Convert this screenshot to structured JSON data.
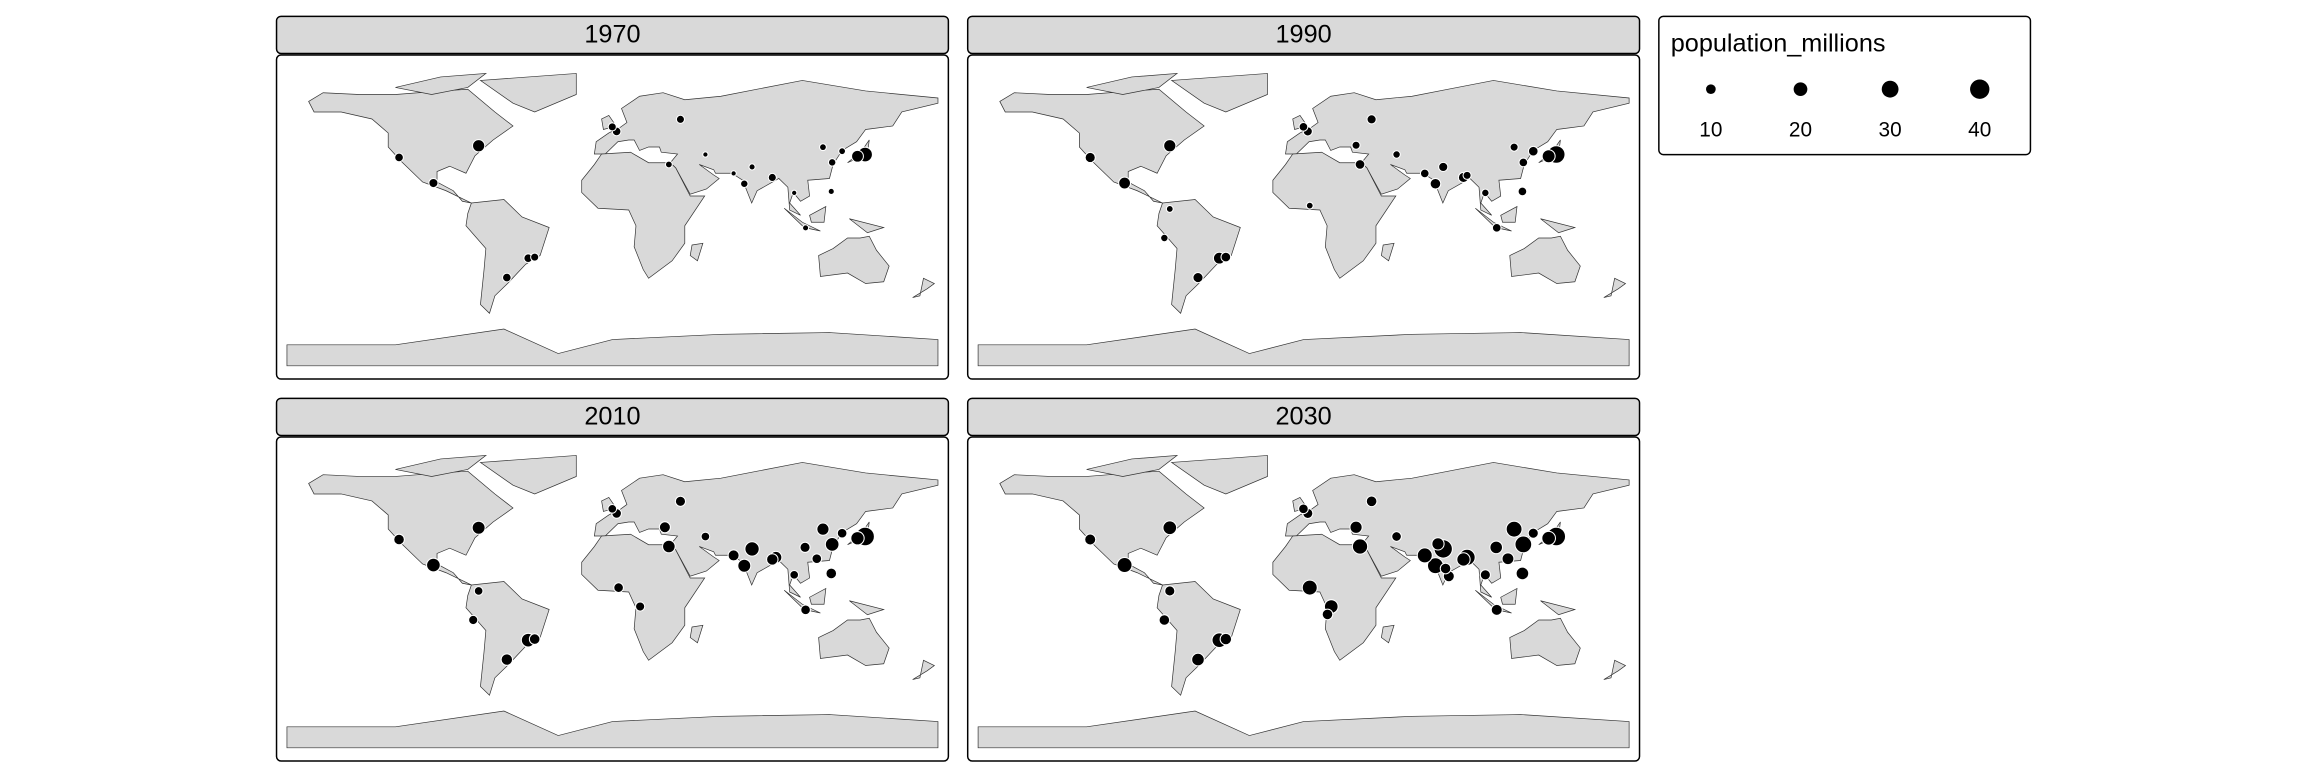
{
  "panels": [
    {
      "title": "1970",
      "lon": [
        139.7,
        135.5,
        -74,
        -99,
        -118,
        -46.6,
        -43,
        -58.4,
        2.3,
        -0.1,
        37.6,
        88.4,
        72.9,
        121.5,
        116.4,
        31.2,
        127,
        106.8,
        77.2,
        67,
        121,
        100.5,
        51.4
      ],
      "lat": [
        35.7,
        34.7,
        40.7,
        19.4,
        34,
        -23.5,
        -22.9,
        -34.6,
        48.9,
        51.5,
        55.8,
        22.6,
        19,
        31.2,
        39.9,
        30,
        37.6,
        -6.2,
        28.6,
        24.9,
        14.6,
        13.8,
        35.7
      ],
      "values": [
        23,
        15,
        16,
        9,
        8,
        8,
        7,
        8,
        8,
        7,
        7,
        7,
        6,
        6,
        5,
        5,
        5,
        4,
        4,
        3,
        4,
        3,
        3
      ]
    },
    {
      "title": "1990",
      "lon": [
        139.7,
        135.5,
        -74,
        -99,
        -118,
        -46.6,
        -43,
        -58.4,
        2.3,
        -0.1,
        37.6,
        88.4,
        72.9,
        121.5,
        116.4,
        31.2,
        127,
        106.8,
        77.2,
        67,
        121,
        100.5,
        90.4,
        3.4,
        29,
        51.4,
        -77,
        -74
      ],
      "lat": [
        35.7,
        34.7,
        40.7,
        19.4,
        34,
        -23.5,
        -22.9,
        -34.6,
        48.9,
        51.5,
        55.8,
        22.6,
        19,
        31.2,
        39.9,
        30,
        37.6,
        -6.2,
        28.6,
        24.9,
        14.6,
        13.8,
        23.8,
        6.5,
        41,
        35.7,
        -12,
        4.6
      ],
      "values": [
        33,
        18,
        16,
        15,
        11,
        15,
        10,
        11,
        9,
        8,
        9,
        11,
        12,
        8,
        7,
        10,
        10,
        8,
        9,
        8,
        8,
        6,
        7,
        5,
        7,
        6,
        6,
        5
      ]
    },
    {
      "title": "2010",
      "lon": [
        139.7,
        135.5,
        -74,
        -99,
        -118,
        -46.6,
        -43,
        -58.4,
        2.3,
        -0.1,
        37.6,
        88.4,
        72.9,
        121.5,
        116.4,
        31.2,
        127,
        106.8,
        77.2,
        67,
        121,
        100.5,
        90.4,
        3.4,
        29,
        51.4,
        -77,
        -74,
        113,
        106.5,
        15.3
      ],
      "lat": [
        35.7,
        34.7,
        40.7,
        19.4,
        34,
        -23.5,
        -22.9,
        -34.6,
        48.9,
        51.5,
        55.8,
        22.6,
        19,
        31.2,
        39.9,
        30,
        37.6,
        -6.2,
        28.6,
        24.9,
        14.6,
        13.8,
        23.8,
        6.5,
        41,
        35.7,
        -12,
        4.6,
        23,
        29.5,
        -4.3
      ],
      "values": [
        37,
        19,
        18,
        20,
        12,
        20,
        12,
        14,
        10,
        8,
        11,
        14,
        18,
        20,
        16,
        17,
        10,
        10,
        22,
        13,
        12,
        8,
        15,
        10,
        13,
        8,
        9,
        8,
        10,
        11,
        9
      ]
    },
    {
      "title": "2030",
      "lon": [
        139.7,
        135.5,
        -74,
        -99,
        -118,
        -46.6,
        -43,
        -58.4,
        2.3,
        -0.1,
        37.6,
        88.4,
        72.9,
        121.5,
        116.4,
        31.2,
        127,
        106.8,
        77.2,
        67,
        121,
        100.5,
        90.4,
        3.4,
        15.3,
        29,
        51.4,
        -77,
        -74,
        113,
        106.5,
        13.2,
        74.3,
        78.5,
        80.3
      ],
      "lat": [
        35.7,
        34.7,
        40.7,
        19.4,
        34,
        -23.5,
        -22.9,
        -34.6,
        48.9,
        51.5,
        55.8,
        22.6,
        19,
        31.2,
        39.9,
        30,
        37.6,
        -6.2,
        28.6,
        24.9,
        14.6,
        13.8,
        23.8,
        6.5,
        -4.3,
        41,
        35.7,
        -12,
        4.6,
        23,
        29.5,
        -8.8,
        31.5,
        17.4,
        13
      ],
      "values": [
        37,
        20,
        20,
        24,
        13,
        23,
        14,
        17,
        11,
        10,
        12,
        19,
        27,
        30,
        27,
        25,
        11,
        13,
        36,
        24,
        17,
        11,
        28,
        24,
        20,
        16,
        10,
        12,
        11,
        15,
        17,
        12,
        16,
        12,
        13
      ]
    }
  ],
  "legend": {
    "title": "population_millions",
    "values": [
      10,
      20,
      30,
      40
    ]
  }
}
